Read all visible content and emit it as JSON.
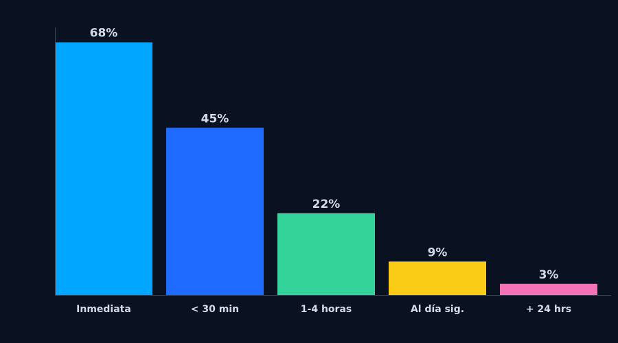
{
  "chart_data": {
    "type": "bar",
    "categories": [
      "Inmediata",
      "< 30 min",
      "1-4 horas",
      "Al día sig.",
      "+ 24 hrs"
    ],
    "values": [
      68,
      45,
      22,
      9,
      3
    ],
    "value_labels": [
      "68%",
      "45%",
      "22%",
      "9%",
      "3%"
    ],
    "colors": [
      "#00a6ff",
      "#1f6bff",
      "#34d399",
      "#facc15",
      "#f472b6"
    ],
    "ylim": [
      0,
      72
    ]
  }
}
